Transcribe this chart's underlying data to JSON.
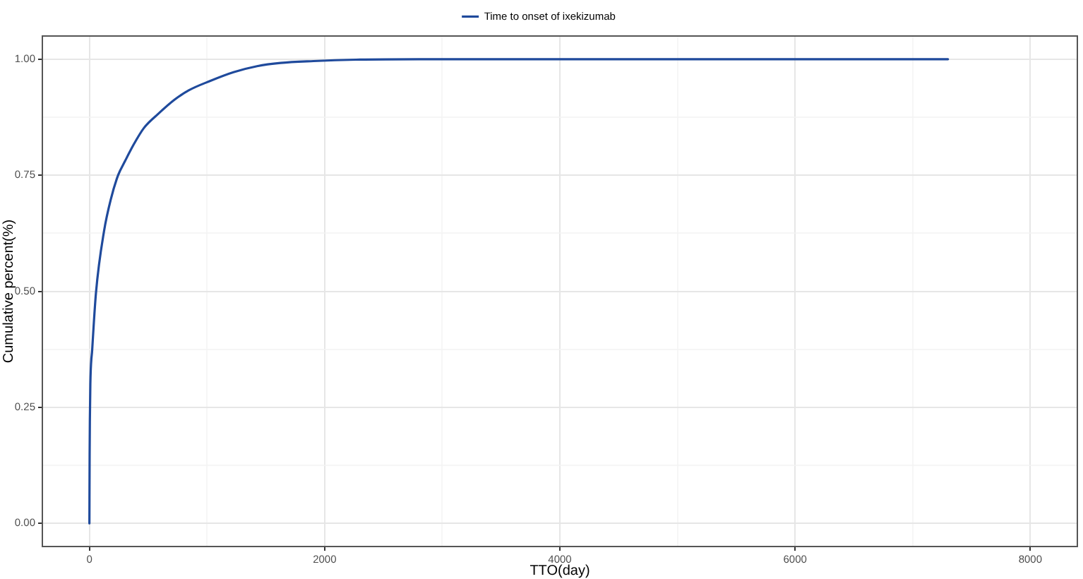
{
  "chart_data": {
    "type": "line",
    "xlabel": "TTO(day)",
    "ylabel": "Cumulative percent(%)",
    "x": [
      0,
      2,
      4,
      8,
      24,
      56,
      124,
      184,
      244,
      304,
      376,
      464,
      584,
      725,
      845,
      1025,
      1225,
      1425,
      1625,
      1906,
      2266,
      2800,
      7300
    ],
    "series": [
      {
        "name": "Time to onset of ixekizumab",
        "color": "#1f4a9c",
        "values": [
          0,
          0.15,
          0.223,
          0.3,
          0.375,
          0.497,
          0.629,
          0.7,
          0.75,
          0.781,
          0.816,
          0.852,
          0.882,
          0.913,
          0.933,
          0.953,
          0.972,
          0.985,
          0.992,
          0.996,
          0.999,
          1,
          1
        ]
      }
    ],
    "xlim": [
      -400,
      8400
    ],
    "ylim": [
      -0.05,
      1.05
    ],
    "xticks": [
      0,
      {
        "value": 1000,
        "label": null
      },
      2000,
      {
        "value": 3000,
        "label": null
      },
      4000,
      {
        "value": 5000,
        "label": null
      },
      6000,
      {
        "value": 7000,
        "label": null
      },
      8000
    ],
    "yticks": [
      {
        "value": 0,
        "label": "0.00"
      },
      {
        "value": 0.125,
        "label": null
      },
      0.25,
      {
        "value": 0.375,
        "label": null
      },
      {
        "value": 0.5,
        "label": "0.50"
      },
      {
        "value": 0.625,
        "label": null
      },
      0.75,
      {
        "value": 0.875,
        "label": null
      },
      {
        "value": 1,
        "label": "1.00"
      }
    ],
    "grid": true,
    "legend": "top",
    "marker": "none"
  }
}
